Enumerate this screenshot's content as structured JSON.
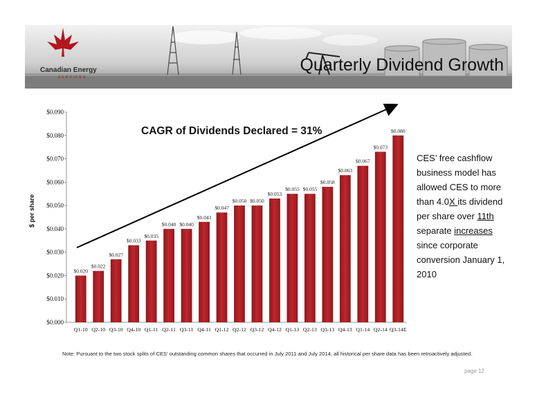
{
  "header": {
    "title": "Quarterly Dividend Growth",
    "logo_name": "Canadian Energy",
    "logo_sub": "SERVICES"
  },
  "colors": {
    "bar": "#c0262b",
    "bar_dark": "#8e1a1d",
    "accent": "#b3161b"
  },
  "chart_data": {
    "type": "bar",
    "title": "",
    "xlabel": "",
    "ylabel": "$ per share",
    "ylim": [
      0,
      0.09
    ],
    "yticks": [
      "$0.000",
      "$0.010",
      "$0.020",
      "$0.030",
      "$0.040",
      "$0.050",
      "$0.060",
      "$0.070",
      "$0.080",
      "$0.090"
    ],
    "categories": [
      "Q1-10",
      "Q2-10",
      "Q3-10",
      "Q4-10",
      "Q1-11",
      "Q2-11",
      "Q3-11",
      "Q4-11",
      "Q1-12",
      "Q2-12",
      "Q3-12",
      "Q4-12",
      "Q1-13",
      "Q2-13",
      "Q3-13",
      "Q4-13",
      "Q1-14",
      "Q2-14",
      "Q3-14E"
    ],
    "values": [
      0.02,
      0.022,
      0.027,
      0.033,
      0.035,
      0.04,
      0.04,
      0.043,
      0.047,
      0.05,
      0.05,
      0.053,
      0.055,
      0.055,
      0.058,
      0.063,
      0.067,
      0.073,
      0.08
    ],
    "labels": [
      "$0.020",
      "$0.022",
      "$0.027",
      "$0.033",
      "$0.035",
      "$0.040",
      "$0.040",
      "$0.043",
      "$0.047",
      "$0.050",
      "$0.050",
      "$0.053",
      "$0.055",
      "$0.055",
      "$0.058",
      "$0.063",
      "$0.067",
      "$0.073",
      "$0.080"
    ],
    "annotation": "CAGR of Dividends Declared = 31%",
    "grid": false
  },
  "side": {
    "part1": "CES’ free cashflow business model has allowed CES to more than 4.0",
    "part2": "X ",
    "part3": "its dividend per share over ",
    "part4": "11th",
    "part5": " separate ",
    "part6": "increases",
    "part7": " since corporate conversion January 1, 2010"
  },
  "note": "Note:   Pursuant to the two stock splits of CES’ outstanding common shares that occurred in July 2011 and July 2014, all historical per share data has been retroactively adjusted.",
  "page": "page 12"
}
